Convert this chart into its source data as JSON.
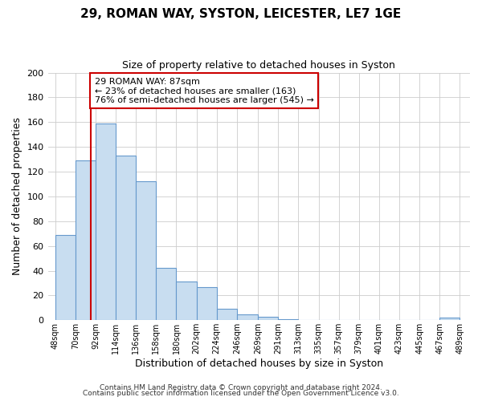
{
  "title": "29, ROMAN WAY, SYSTON, LEICESTER, LE7 1GE",
  "subtitle": "Size of property relative to detached houses in Syston",
  "xlabel": "Distribution of detached houses by size in Syston",
  "ylabel": "Number of detached properties",
  "bar_left_edges": [
    48,
    70,
    92,
    114,
    136,
    158,
    180,
    202,
    224,
    246,
    269,
    291,
    313,
    335,
    357,
    379,
    401,
    423,
    445,
    467
  ],
  "bar_heights": [
    69,
    129,
    159,
    133,
    112,
    42,
    31,
    27,
    9,
    5,
    3,
    1,
    0,
    0,
    0,
    0,
    0,
    0,
    0,
    2
  ],
  "bar_widths": [
    22,
    22,
    22,
    22,
    22,
    22,
    22,
    22,
    22,
    23,
    22,
    22,
    22,
    22,
    22,
    22,
    22,
    22,
    22,
    22
  ],
  "xtick_labels": [
    "48sqm",
    "70sqm",
    "92sqm",
    "114sqm",
    "136sqm",
    "158sqm",
    "180sqm",
    "202sqm",
    "224sqm",
    "246sqm",
    "269sqm",
    "291sqm",
    "313sqm",
    "335sqm",
    "357sqm",
    "379sqm",
    "401sqm",
    "423sqm",
    "445sqm",
    "467sqm",
    "489sqm"
  ],
  "xtick_positions": [
    48,
    70,
    92,
    114,
    136,
    158,
    180,
    202,
    224,
    246,
    269,
    291,
    313,
    335,
    357,
    379,
    401,
    423,
    445,
    467,
    489
  ],
  "bar_color": "#c8ddf0",
  "bar_edge_color": "#6699cc",
  "property_line_x": 87,
  "property_line_color": "#cc0000",
  "annotation_line1": "29 ROMAN WAY: 87sqm",
  "annotation_line2": "← 23% of detached houses are smaller (163)",
  "annotation_line3": "76% of semi-detached houses are larger (545) →",
  "annotation_box_color": "#ffffff",
  "annotation_box_edge": "#cc0000",
  "ylim": [
    0,
    200
  ],
  "yticks": [
    0,
    20,
    40,
    60,
    80,
    100,
    120,
    140,
    160,
    180,
    200
  ],
  "xlim": [
    40,
    500
  ],
  "footer_line1": "Contains HM Land Registry data © Crown copyright and database right 2024.",
  "footer_line2": "Contains public sector information licensed under the Open Government Licence v3.0.",
  "grid_color": "#cccccc",
  "plot_bg_color": "#ffffff",
  "fig_bg_color": "#ffffff"
}
